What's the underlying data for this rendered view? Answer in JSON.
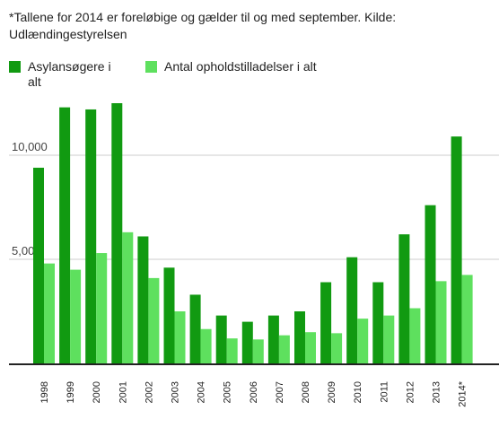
{
  "note": "*Tallene for 2014 er foreløbige og gælder til og med september. Kilde: Udlændingestyrelsen",
  "chart_data": {
    "type": "bar",
    "title": "",
    "xlabel": "",
    "ylabel": "",
    "categories": [
      "1998",
      "1999",
      "2000",
      "2001",
      "2002",
      "2003",
      "2004",
      "2005",
      "2006",
      "2007",
      "2008",
      "2009",
      "2010",
      "2011",
      "2012",
      "2013",
      "2014*"
    ],
    "series": [
      {
        "name": "Asylansøgere i alt",
        "color": "#119a11",
        "values": [
          9400,
          12300,
          12200,
          12500,
          6100,
          4600,
          3300,
          2300,
          2000,
          2300,
          2500,
          3900,
          5100,
          3900,
          6200,
          7600,
          10900
        ]
      },
      {
        "name": "Antal opholdstilladelser i alt",
        "color": "#5ee05e",
        "values": [
          4800,
          4500,
          5300,
          6300,
          4100,
          2500,
          1650,
          1200,
          1150,
          1350,
          1500,
          1450,
          2150,
          2300,
          2650,
          3950,
          4250
        ]
      }
    ],
    "yticks": [
      5000,
      10000
    ],
    "ytick_labels": [
      "5,000",
      "10,000"
    ],
    "ylim": [
      0,
      12800
    ],
    "grid": true,
    "legend": "top-left"
  }
}
